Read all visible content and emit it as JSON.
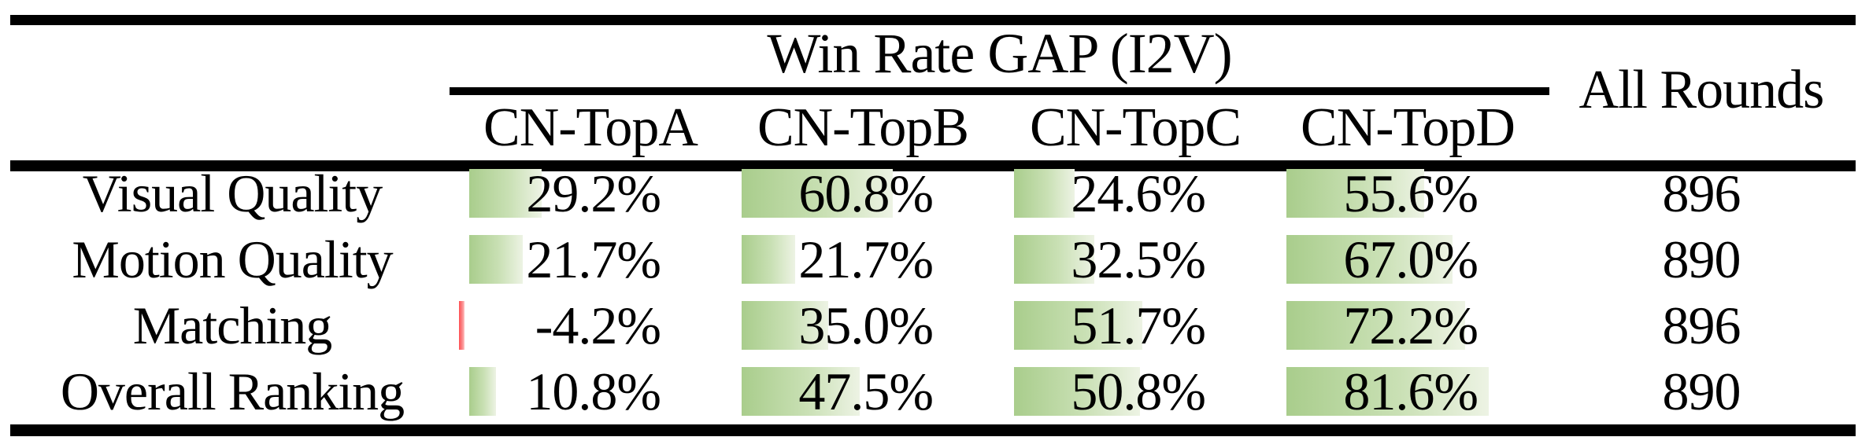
{
  "table": {
    "group_header": "Win Rate GAP (I2V)",
    "columns": [
      "CN-TopA",
      "CN-TopB",
      "CN-TopC",
      "CN-TopD"
    ],
    "all_rounds_header": "All Rounds",
    "rows": [
      {
        "label": "Visual Quality",
        "values": [
          "29.2%",
          "60.8%",
          "24.6%",
          "55.6%"
        ],
        "all_rounds": "896"
      },
      {
        "label": "Motion Quality",
        "values": [
          "21.7%",
          "21.7%",
          "32.5%",
          "67.0%"
        ],
        "all_rounds": "890"
      },
      {
        "label": "Matching",
        "values": [
          "-4.2%",
          "35.0%",
          "51.7%",
          "72.2%"
        ],
        "all_rounds": "896"
      },
      {
        "label": "Overall Ranking",
        "values": [
          "10.8%",
          "47.5%",
          "50.8%",
          "81.6%"
        ],
        "all_rounds": "890"
      }
    ]
  },
  "chart_data": {
    "type": "table",
    "title": "Win Rate GAP (I2V)",
    "columns": [
      "CN-TopA",
      "CN-TopB",
      "CN-TopC",
      "CN-TopD"
    ],
    "row_labels": [
      "Visual Quality",
      "Motion Quality",
      "Matching",
      "Overall Ranking"
    ],
    "win_rate_gap_pct": [
      [
        29.2,
        60.8,
        24.6,
        55.6
      ],
      [
        21.7,
        21.7,
        32.5,
        67.0
      ],
      [
        -4.2,
        35.0,
        51.7,
        72.2
      ],
      [
        10.8,
        47.5,
        50.8,
        81.6
      ]
    ],
    "all_rounds": [
      896,
      890,
      896,
      890
    ],
    "bar_style": "in-cell horizontal gradient data bars, length proportional to value; negative value drawn as thin red bar",
    "colors": {
      "bar_green": "#a9cd8c",
      "bar_green_fade": "#edf3e4",
      "bar_negative_red": "#ff4f52",
      "rule_black": "#000000",
      "background": "#ffffff"
    }
  }
}
